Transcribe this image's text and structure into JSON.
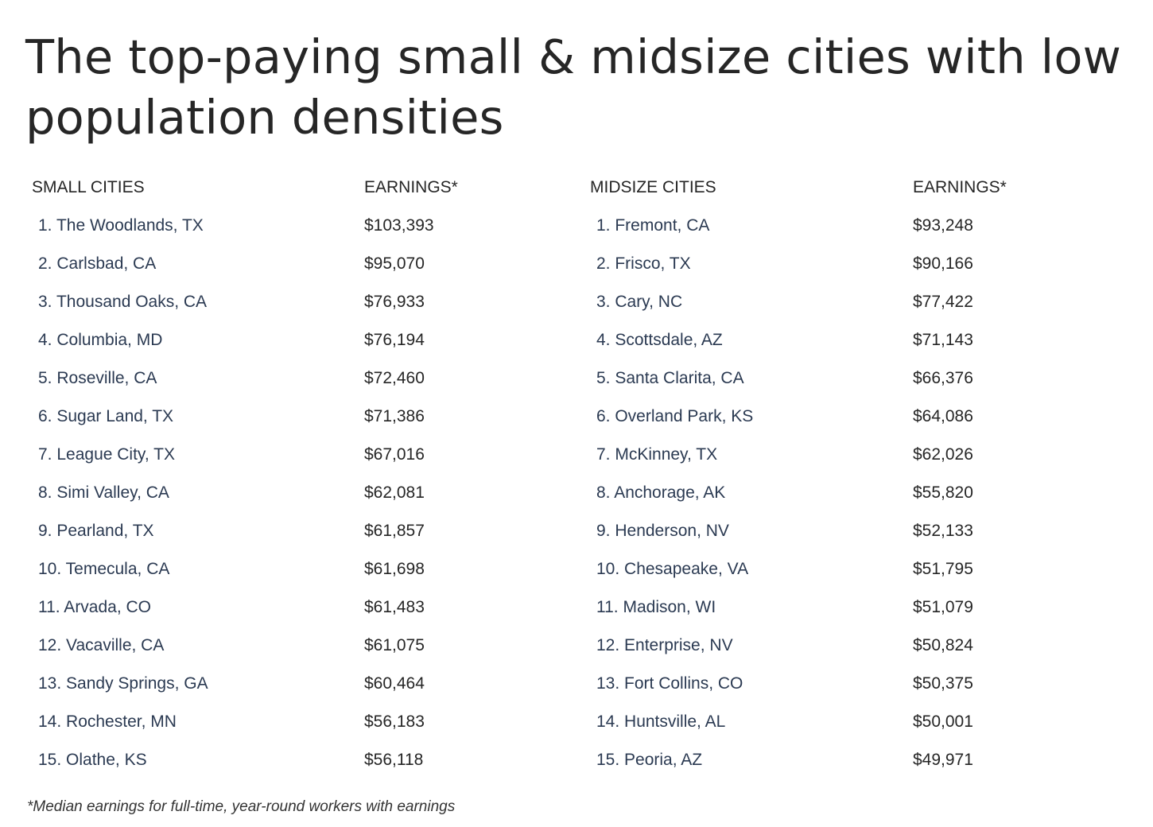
{
  "title": "The top-paying small & midsize cities with low population densities",
  "small": {
    "header_city": "SMALL CITIES",
    "header_earnings": "EARNINGS*",
    "rows": [
      {
        "city": "1. The Woodlands, TX",
        "earnings": "$103,393"
      },
      {
        "city": "2. Carlsbad, CA",
        "earnings": "$95,070"
      },
      {
        "city": "3. Thousand Oaks, CA",
        "earnings": "$76,933"
      },
      {
        "city": "4. Columbia, MD",
        "earnings": "$76,194"
      },
      {
        "city": "5. Roseville, CA",
        "earnings": "$72,460"
      },
      {
        "city": "6. Sugar Land, TX",
        "earnings": "$71,386"
      },
      {
        "city": "7. League City, TX",
        "earnings": "$67,016"
      },
      {
        "city": "8. Simi Valley, CA",
        "earnings": "$62,081"
      },
      {
        "city": "9. Pearland, TX",
        "earnings": "$61,857"
      },
      {
        "city": "10. Temecula, CA",
        "earnings": "$61,698"
      },
      {
        "city": "11. Arvada, CO",
        "earnings": "$61,483"
      },
      {
        "city": "12. Vacaville, CA",
        "earnings": "$61,075"
      },
      {
        "city": "13. Sandy Springs, GA",
        "earnings": "$60,464"
      },
      {
        "city": "14. Rochester, MN",
        "earnings": "$56,183"
      },
      {
        "city": "15. Olathe, KS",
        "earnings": "$56,118"
      }
    ]
  },
  "midsize": {
    "header_city": "MIDSIZE CITIES",
    "header_earnings": "EARNINGS*",
    "rows": [
      {
        "city": "1. Fremont, CA",
        "earnings": "$93,248"
      },
      {
        "city": "2. Frisco, TX",
        "earnings": "$90,166"
      },
      {
        "city": "3. Cary, NC",
        "earnings": "$77,422"
      },
      {
        "city": "4. Scottsdale, AZ",
        "earnings": "$71,143"
      },
      {
        "city": "5. Santa Clarita, CA",
        "earnings": "$66,376"
      },
      {
        "city": "6. Overland Park, KS",
        "earnings": "$64,086"
      },
      {
        "city": "7. McKinney, TX",
        "earnings": "$62,026"
      },
      {
        "city": "8. Anchorage, AK",
        "earnings": "$55,820"
      },
      {
        "city": "9. Henderson, NV",
        "earnings": "$52,133"
      },
      {
        "city": "10. Chesapeake, VA",
        "earnings": "$51,795"
      },
      {
        "city": "11. Madison, WI",
        "earnings": "$51,079"
      },
      {
        "city": "12. Enterprise, NV",
        "earnings": "$50,824"
      },
      {
        "city": "13. Fort Collins, CO",
        "earnings": "$50,375"
      },
      {
        "city": "14. Huntsville, AL",
        "earnings": "$50,001"
      },
      {
        "city": "15. Peoria, AZ",
        "earnings": "$49,971"
      }
    ]
  },
  "footnote": "*Median earnings for full-time, year-round workers with earnings"
}
